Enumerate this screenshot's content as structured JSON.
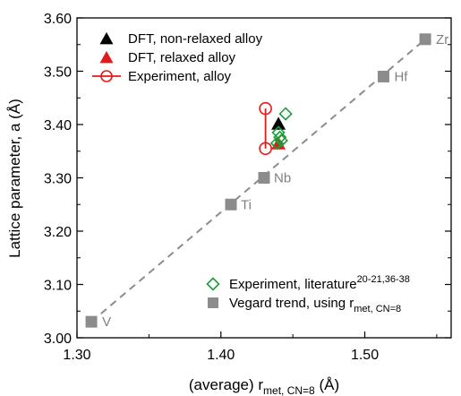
{
  "chart_data": {
    "type": "scatter",
    "xlabel": "(average) r",
    "xlabel_sub": "met, CN=8",
    "xlabel_unit": " (Å)",
    "ylabel": "Lattice parameter, a (Å)",
    "xlim": [
      1.3,
      1.56
    ],
    "ylim": [
      3.0,
      3.6
    ],
    "x_ticks": [
      {
        "value": 1.3,
        "label": "1.30"
      },
      {
        "value": 1.4,
        "label": "1.40"
      },
      {
        "value": 1.5,
        "label": "1.50"
      }
    ],
    "y_ticks": [
      {
        "value": 3.0,
        "label": "3.00"
      },
      {
        "value": 3.1,
        "label": "3.10"
      },
      {
        "value": 3.2,
        "label": "3.20"
      },
      {
        "value": 3.3,
        "label": "3.30"
      },
      {
        "value": 3.4,
        "label": "3.40"
      },
      {
        "value": 3.5,
        "label": "3.50"
      },
      {
        "value": 3.6,
        "label": "3.60"
      }
    ],
    "legend_top": {
      "placement": "top-left",
      "entries": [
        {
          "label": "DFT, non-relaxed alloy",
          "marker": "triangle",
          "color": "#000000"
        },
        {
          "label": "DFT, relaxed alloy",
          "marker": "triangle",
          "color": "#e31a1c"
        },
        {
          "label": "Experiment, alloy",
          "marker": "circle-line",
          "color": "#e31a1c"
        }
      ]
    },
    "legend_bottom": {
      "placement": "bottom-right",
      "entries": [
        {
          "label": "Experiment, literature",
          "sup": "20-21,36-38",
          "marker": "diamond",
          "color": "#1a9e3a"
        },
        {
          "label": "Vegard trend, using r",
          "sub": "met, CN=8",
          "marker": "square",
          "color": "#8c8c8c"
        }
      ]
    },
    "series": [
      {
        "name": "Vegard trend, using r met, CN=8",
        "marker": "square",
        "color": "#8c8c8c",
        "points": [
          {
            "x": 1.31,
            "y": 3.03,
            "label": "V"
          },
          {
            "x": 1.407,
            "y": 3.25,
            "label": "Ti"
          },
          {
            "x": 1.43,
            "y": 3.3,
            "label": "Nb"
          },
          {
            "x": 1.513,
            "y": 3.49,
            "label": "Hf"
          },
          {
            "x": 1.542,
            "y": 3.56,
            "label": "Zr"
          }
        ],
        "trend_line": {
          "x": [
            1.31,
            1.542
          ],
          "y": [
            3.03,
            3.56
          ],
          "style": "dashed"
        }
      },
      {
        "name": "DFT, non-relaxed alloy",
        "marker": "triangle",
        "color": "#000000",
        "points": [
          {
            "x": 1.44,
            "y": 3.4
          }
        ]
      },
      {
        "name": "DFT, relaxed alloy",
        "marker": "triangle",
        "color": "#e31a1c",
        "points": [
          {
            "x": 1.44,
            "y": 3.363
          }
        ]
      },
      {
        "name": "Experiment, alloy",
        "marker": "circle",
        "color": "#e31a1c",
        "points": [
          {
            "x": 1.431,
            "y": 3.43
          },
          {
            "x": 1.431,
            "y": 3.355
          }
        ],
        "connected": true
      },
      {
        "name": "Experiment, literature",
        "marker": "diamond",
        "color": "#1a9e3a",
        "points": [
          {
            "x": 1.445,
            "y": 3.42
          },
          {
            "x": 1.44,
            "y": 3.385
          },
          {
            "x": 1.441,
            "y": 3.376
          },
          {
            "x": 1.442,
            "y": 3.37
          },
          {
            "x": 1.439,
            "y": 3.365
          }
        ]
      }
    ]
  }
}
